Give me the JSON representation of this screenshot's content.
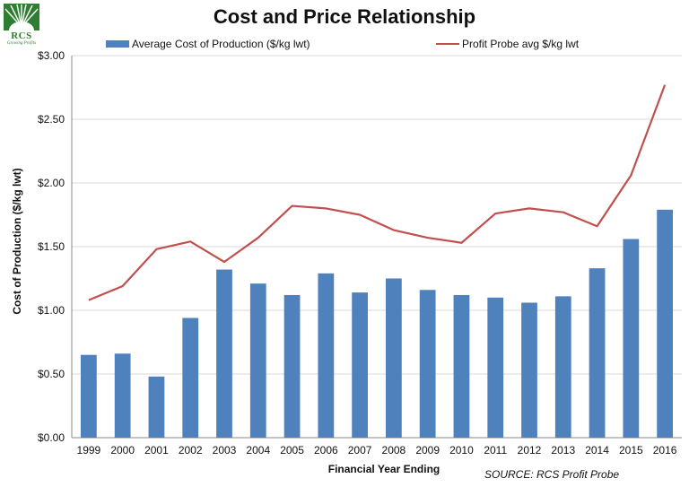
{
  "logo": {
    "text": "RCS",
    "tagline": "Growing Profits"
  },
  "chart_data": {
    "type": "bar",
    "title": "Cost and Price Relationship",
    "xlabel": "Financial Year Ending",
    "ylabel": "Cost of Production ($/kg lwt)",
    "categories": [
      "1999",
      "2000",
      "2001",
      "2002",
      "2003",
      "2004",
      "2005",
      "2006",
      "2007",
      "2008",
      "2009",
      "2010",
      "2011",
      "2012",
      "2013",
      "2014",
      "2015",
      "2016"
    ],
    "series": [
      {
        "name": "Average Cost of Production ($/kg lwt)",
        "type": "bar",
        "color": "#4f81bd",
        "values": [
          0.65,
          0.66,
          0.48,
          0.94,
          1.32,
          1.21,
          1.12,
          1.29,
          1.14,
          1.25,
          1.16,
          1.12,
          1.1,
          1.06,
          1.11,
          1.33,
          1.56,
          1.79
        ]
      },
      {
        "name": "Profit Probe avg $/kg lwt",
        "type": "line",
        "color": "#c0504d",
        "values": [
          1.08,
          1.19,
          1.48,
          1.54,
          1.38,
          1.57,
          1.82,
          1.8,
          1.75,
          1.63,
          1.57,
          1.53,
          1.76,
          1.8,
          1.77,
          1.66,
          2.06,
          2.77
        ]
      }
    ],
    "ylim": [
      0,
      3.0
    ],
    "yticks": [
      "$0.00",
      "$0.50",
      "$1.00",
      "$1.50",
      "$2.00",
      "$2.50",
      "$3.00"
    ],
    "ytick_values": [
      0,
      0.5,
      1.0,
      1.5,
      2.0,
      2.5,
      3.0
    ],
    "grid": true,
    "legend": "top",
    "source": "SOURCE: RCS Profit Probe"
  }
}
